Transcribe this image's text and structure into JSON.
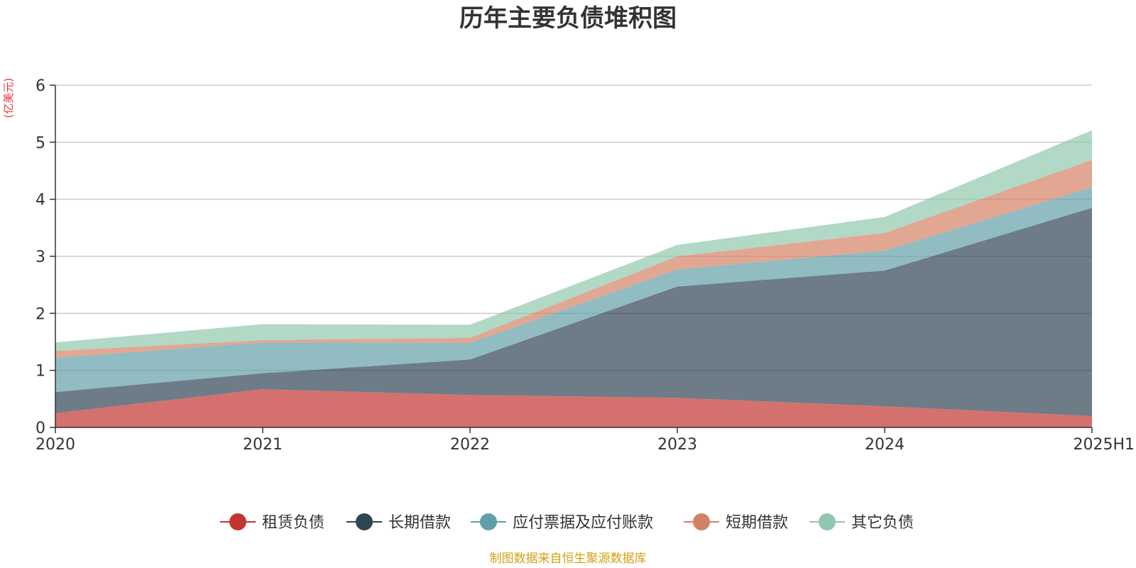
{
  "chart_data": {
    "type": "area",
    "stacked": true,
    "title": "历年主要负债堆积图",
    "ylabel": "(亿美元)",
    "xlabel": "",
    "categories": [
      "2020",
      "2021",
      "2022",
      "2023",
      "2024",
      "2025H1"
    ],
    "ylim": [
      0,
      6
    ],
    "yticks": [
      0,
      1,
      2,
      3,
      4,
      5,
      6
    ],
    "grid": true,
    "legend_position": "bottom",
    "series": [
      {
        "name": "租赁负债",
        "color": "#c23531",
        "values": [
          0.25,
          0.67,
          0.57,
          0.52,
          0.37,
          0.2
        ]
      },
      {
        "name": "长期借款",
        "color": "#2f4554",
        "values": [
          0.37,
          0.28,
          0.62,
          1.95,
          2.38,
          3.65
        ]
      },
      {
        "name": "应付票据及应付账款",
        "color": "#61a0a8",
        "values": [
          0.6,
          0.54,
          0.29,
          0.3,
          0.35,
          0.36
        ]
      },
      {
        "name": "短期借款",
        "color": "#d48265",
        "values": [
          0.12,
          0.04,
          0.09,
          0.23,
          0.31,
          0.48
        ]
      },
      {
        "name": "其它负债",
        "color": "#91c7ae",
        "values": [
          0.15,
          0.28,
          0.23,
          0.2,
          0.28,
          0.52
        ]
      }
    ]
  },
  "footer": {
    "source": "制图数据来自恒生聚源数据库"
  }
}
